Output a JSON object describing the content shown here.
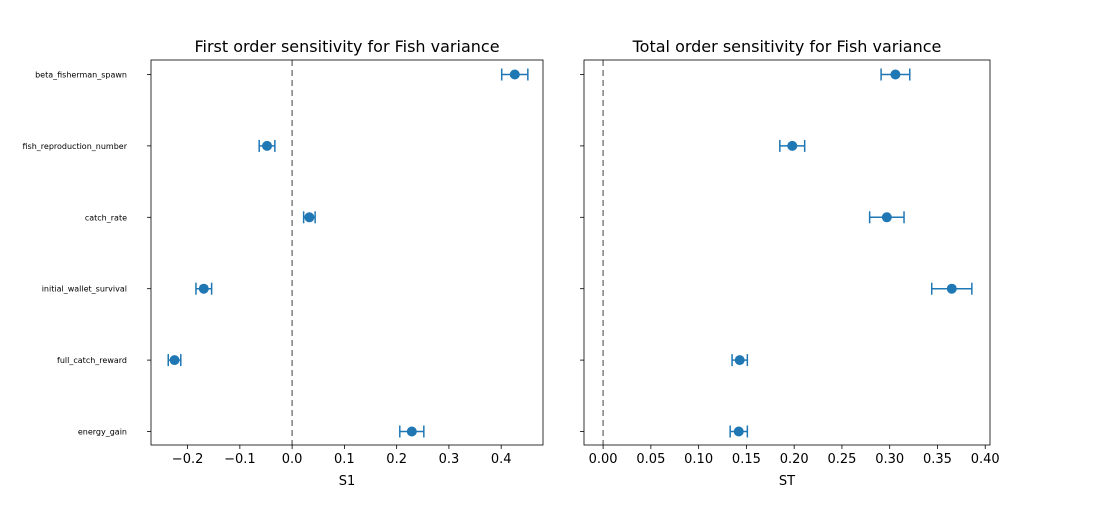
{
  "chart_data": [
    {
      "type": "scatter",
      "title": "First order sensitivity for Fish variance",
      "xlabel": "S1",
      "ylabel": "",
      "xlim": [
        -0.27,
        0.48
      ],
      "xticks": [
        -0.2,
        -0.1,
        0.0,
        0.1,
        0.2,
        0.3,
        0.4
      ],
      "xtick_labels": [
        "−0.2",
        "−0.1",
        "0.0",
        "0.1",
        "0.2",
        "0.3",
        "0.4"
      ],
      "reference_line": 0.0,
      "show_y_labels": true,
      "categories": [
        "beta_fisherman_spawn",
        "fish_reproduction_number",
        "catch_rate",
        "initial_wallet_survival",
        "full_catch_reward",
        "energy_gain"
      ],
      "values": [
        0.426,
        -0.048,
        0.033,
        -0.169,
        -0.225,
        0.229
      ],
      "errors": [
        0.025,
        0.015,
        0.011,
        0.015,
        0.012,
        0.023
      ],
      "color": "#1f77b4",
      "grid": false
    },
    {
      "type": "scatter",
      "title": "Total order sensitivity for Fish variance",
      "xlabel": "ST",
      "ylabel": "",
      "xlim": [
        -0.02,
        0.405
      ],
      "xticks": [
        0.0,
        0.05,
        0.1,
        0.15,
        0.2,
        0.25,
        0.3,
        0.35,
        0.4
      ],
      "xtick_labels": [
        "0.00",
        "0.05",
        "0.10",
        "0.15",
        "0.20",
        "0.25",
        "0.30",
        "0.35",
        "0.40"
      ],
      "reference_line": 0.0,
      "show_y_labels": false,
      "categories": [
        "beta_fisherman_spawn",
        "fish_reproduction_number",
        "catch_rate",
        "initial_wallet_survival",
        "full_catch_reward",
        "energy_gain"
      ],
      "values": [
        0.306,
        0.198,
        0.297,
        0.365,
        0.143,
        0.142
      ],
      "errors": [
        0.015,
        0.013,
        0.018,
        0.021,
        0.008,
        0.009
      ],
      "color": "#1f77b4",
      "grid": false
    }
  ]
}
